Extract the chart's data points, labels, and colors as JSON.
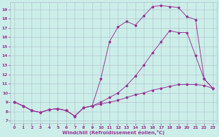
{
  "xlabel": "Windchill (Refroidissement éolien,°C)",
  "background_color": "#cceee8",
  "grid_color": "#aabbcc",
  "line_color": "#993399",
  "x_ticks": [
    0,
    1,
    2,
    3,
    4,
    5,
    6,
    7,
    8,
    9,
    10,
    11,
    12,
    13,
    14,
    15,
    16,
    17,
    18,
    19,
    20,
    21,
    22,
    23
  ],
  "y_ticks": [
    7,
    8,
    9,
    10,
    11,
    12,
    13,
    14,
    15,
    16,
    17,
    18,
    19
  ],
  "xlim": [
    -0.5,
    23.5
  ],
  "ylim": [
    6.7,
    19.8
  ],
  "curve1_x": [
    0,
    1,
    2,
    3,
    4,
    5,
    6,
    7,
    8,
    9,
    10,
    11,
    12,
    13,
    14,
    15,
    16,
    17,
    18,
    19,
    20,
    21,
    22,
    23
  ],
  "curve1_y": [
    9.0,
    8.6,
    8.1,
    7.9,
    8.2,
    8.3,
    8.1,
    7.5,
    8.4,
    8.6,
    11.5,
    15.5,
    17.1,
    17.7,
    17.3,
    18.3,
    19.3,
    19.4,
    19.3,
    19.2,
    18.2,
    17.9,
    11.5,
    10.5
  ],
  "curve2_x": [
    0,
    1,
    2,
    3,
    4,
    5,
    6,
    7,
    8,
    9,
    10,
    11,
    12,
    13,
    14,
    15,
    16,
    17,
    18,
    19,
    20,
    21,
    22,
    23
  ],
  "curve2_y": [
    9.0,
    8.6,
    8.1,
    7.9,
    8.2,
    8.3,
    8.1,
    7.5,
    8.4,
    8.6,
    9.0,
    9.5,
    10.0,
    10.8,
    11.8,
    13.0,
    14.3,
    15.5,
    16.7,
    16.5,
    16.5,
    14.0,
    11.5,
    10.5
  ],
  "curve3_x": [
    0,
    1,
    2,
    3,
    4,
    5,
    6,
    7,
    8,
    9,
    10,
    11,
    12,
    13,
    14,
    15,
    16,
    17,
    18,
    19,
    20,
    21,
    22,
    23
  ],
  "curve3_y": [
    9.0,
    8.6,
    8.1,
    7.9,
    8.2,
    8.3,
    8.1,
    7.5,
    8.4,
    8.6,
    8.8,
    9.0,
    9.2,
    9.5,
    9.8,
    10.0,
    10.3,
    10.5,
    10.7,
    10.9,
    10.9,
    10.9,
    10.8,
    10.5
  ]
}
